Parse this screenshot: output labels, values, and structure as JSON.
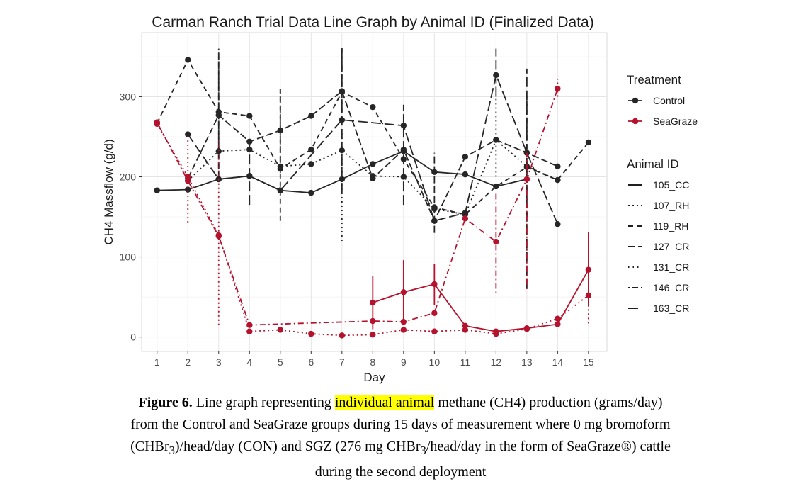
{
  "chart_data": {
    "type": "line",
    "title": "Carman Ranch Trial Data Line Graph by Animal ID (Finalized Data)",
    "xlabel": "Day",
    "ylabel": "CH4 Massflow (g/d)",
    "x_ticks": [
      "1",
      "2",
      "3",
      "4",
      "5",
      "6",
      "7",
      "8",
      "9",
      "10",
      "11",
      "12",
      "13",
      "14",
      "15"
    ],
    "y_ticks": [
      "0",
      "100",
      "200",
      "300"
    ],
    "xlim": [
      0.5,
      15.6
    ],
    "ylim": [
      -18,
      380
    ],
    "grid": true,
    "legend_placement": "right",
    "treatment_legend": {
      "title": "Treatment",
      "items": [
        {
          "label": "Control",
          "color": "#262626"
        },
        {
          "label": "SeaGraze",
          "color": "#b5122e"
        }
      ]
    },
    "animal_legend": {
      "title": "Animal ID",
      "items": [
        {
          "label": "105_CC",
          "dash": "solid"
        },
        {
          "label": "107_RH",
          "dash": "dotted"
        },
        {
          "label": "119_RH",
          "dash": "dashed"
        },
        {
          "label": "127_CR",
          "dash": "longdash"
        },
        {
          "label": "131_CR",
          "dash": "dotted-fine"
        },
        {
          "label": "146_CR",
          "dash": "dotdash"
        },
        {
          "label": "163_CR",
          "dash": "twodash"
        }
      ]
    },
    "series": [
      {
        "treatment": "Control",
        "dash": "solid",
        "points": [
          [
            1,
            183
          ],
          [
            2,
            184
          ],
          [
            3,
            197
          ],
          [
            4,
            201
          ],
          [
            5,
            183
          ],
          [
            6,
            180
          ],
          [
            7,
            197
          ],
          [
            8,
            216
          ],
          [
            9,
            232
          ],
          [
            10,
            206
          ],
          [
            11,
            203
          ],
          [
            12,
            188
          ],
          [
            13,
            197
          ]
        ],
        "error_bars": []
      },
      {
        "treatment": "Control",
        "dash": "twodash",
        "points": [
          [
            2,
            253
          ],
          [
            3,
            197
          ],
          [
            4,
            201
          ],
          [
            5,
            183
          ],
          [
            7,
            271
          ],
          [
            9,
            264
          ],
          [
            10,
            145
          ],
          [
            11,
            155
          ],
          [
            12,
            327
          ],
          [
            13,
            230
          ],
          [
            14,
            141
          ]
        ],
        "error_bars": [
          [
            4,
            165,
            240
          ],
          [
            7,
            180,
            365
          ],
          [
            9,
            165,
            290
          ],
          [
            12,
            300,
            360
          ],
          [
            13,
            60,
            335
          ]
        ]
      },
      {
        "treatment": "Control",
        "dash": "dashed",
        "points": [
          [
            1,
            267
          ],
          [
            2,
            346
          ],
          [
            3,
            281
          ],
          [
            4,
            276
          ],
          [
            5,
            210
          ],
          [
            6,
            234
          ],
          [
            7,
            306
          ],
          [
            8,
            287
          ],
          [
            9,
            222
          ],
          [
            10,
            162
          ],
          [
            11,
            153
          ],
          [
            12,
            188
          ],
          [
            13,
            212
          ],
          [
            14,
            196
          ],
          [
            15,
            243
          ]
        ],
        "error_bars": [
          [
            3,
            200,
            350
          ],
          [
            5,
            145,
            310
          ],
          [
            7,
            280,
            365
          ],
          [
            13,
            150,
            300
          ]
        ]
      },
      {
        "treatment": "Control",
        "dash": "longdash",
        "points": [
          [
            2,
            198
          ],
          [
            3,
            277
          ],
          [
            4,
            244
          ],
          [
            5,
            258
          ],
          [
            6,
            276
          ],
          [
            7,
            307
          ],
          [
            8,
            198
          ],
          [
            9,
            234
          ],
          [
            10,
            145
          ],
          [
            11,
            225
          ],
          [
            12,
            246
          ],
          [
            13,
            230
          ],
          [
            14,
            213
          ]
        ],
        "error_bars": [
          [
            3,
            210,
            360
          ],
          [
            5,
            205,
            310
          ],
          [
            10,
            130,
            230
          ]
        ]
      },
      {
        "treatment": "Control",
        "dash": "dotted",
        "points": [
          [
            2,
            195
          ],
          [
            3,
            232
          ],
          [
            4,
            234
          ],
          [
            5,
            213
          ],
          [
            6,
            216
          ],
          [
            7,
            233
          ],
          [
            8,
            201
          ],
          [
            9,
            200
          ],
          [
            10,
            160
          ],
          [
            11,
            153
          ],
          [
            12,
            246
          ],
          [
            13,
            213
          ],
          [
            14,
            196
          ]
        ],
        "error_bars": [
          [
            7,
            120,
            260
          ],
          [
            12,
            200,
            300
          ]
        ]
      },
      {
        "treatment": "SeaGraze",
        "dash": "solid",
        "points": [
          [
            8,
            43
          ],
          [
            9,
            56
          ],
          [
            10,
            66
          ],
          [
            11,
            14
          ],
          [
            12,
            7
          ],
          [
            13,
            11
          ],
          [
            14,
            16
          ],
          [
            15,
            84
          ]
        ],
        "error_bars": [
          [
            8,
            10,
            76
          ],
          [
            9,
            15,
            96
          ],
          [
            10,
            40,
            91
          ],
          [
            15,
            38,
            131
          ]
        ]
      },
      {
        "treatment": "SeaGraze",
        "dash": "dotdash",
        "points": [
          [
            1,
            268
          ],
          [
            2,
            195
          ],
          [
            3,
            126
          ],
          [
            4,
            15
          ],
          [
            8,
            20
          ],
          [
            9,
            19
          ],
          [
            10,
            30
          ],
          [
            11,
            148
          ],
          [
            12,
            119
          ],
          [
            13,
            197
          ],
          [
            14,
            310
          ]
        ],
        "error_bars": [
          [
            12,
            55,
            180
          ],
          [
            13,
            60,
            230
          ],
          [
            14,
            300,
            322
          ]
        ]
      },
      {
        "treatment": "SeaGraze",
        "dash": "dotted",
        "points": [
          [
            1,
            266
          ],
          [
            2,
            200
          ],
          [
            3,
            127
          ],
          [
            4,
            7
          ],
          [
            5,
            9
          ],
          [
            6,
            4
          ],
          [
            7,
            2
          ],
          [
            8,
            3
          ],
          [
            9,
            9
          ],
          [
            10,
            7
          ],
          [
            11,
            9
          ],
          [
            12,
            4
          ],
          [
            13,
            10
          ],
          [
            14,
            23
          ],
          [
            15,
            52
          ]
        ],
        "error_bars": [
          [
            2,
            143,
            255
          ],
          [
            3,
            15,
            245
          ],
          [
            15,
            17,
            62
          ]
        ]
      }
    ]
  },
  "caption": {
    "fig_label": "Figure 6.",
    "before_highlight": "Line graph representing",
    "highlight": "individual animal",
    "line1_after": "methane (CH4) production (grams/day)",
    "line2": "from the Control and SeaGraze groups during 15 days of measurement where 0 mg bromoform",
    "line3_a": "(CHBr",
    "line3_sub1": "3",
    "line3_b": ")/head/day (CON) and SGZ (276 mg CHBr",
    "line3_sub2": "3",
    "line3_c": "/head/day in the form of SeaGraze®) cattle",
    "line4": "during the second deployment"
  }
}
